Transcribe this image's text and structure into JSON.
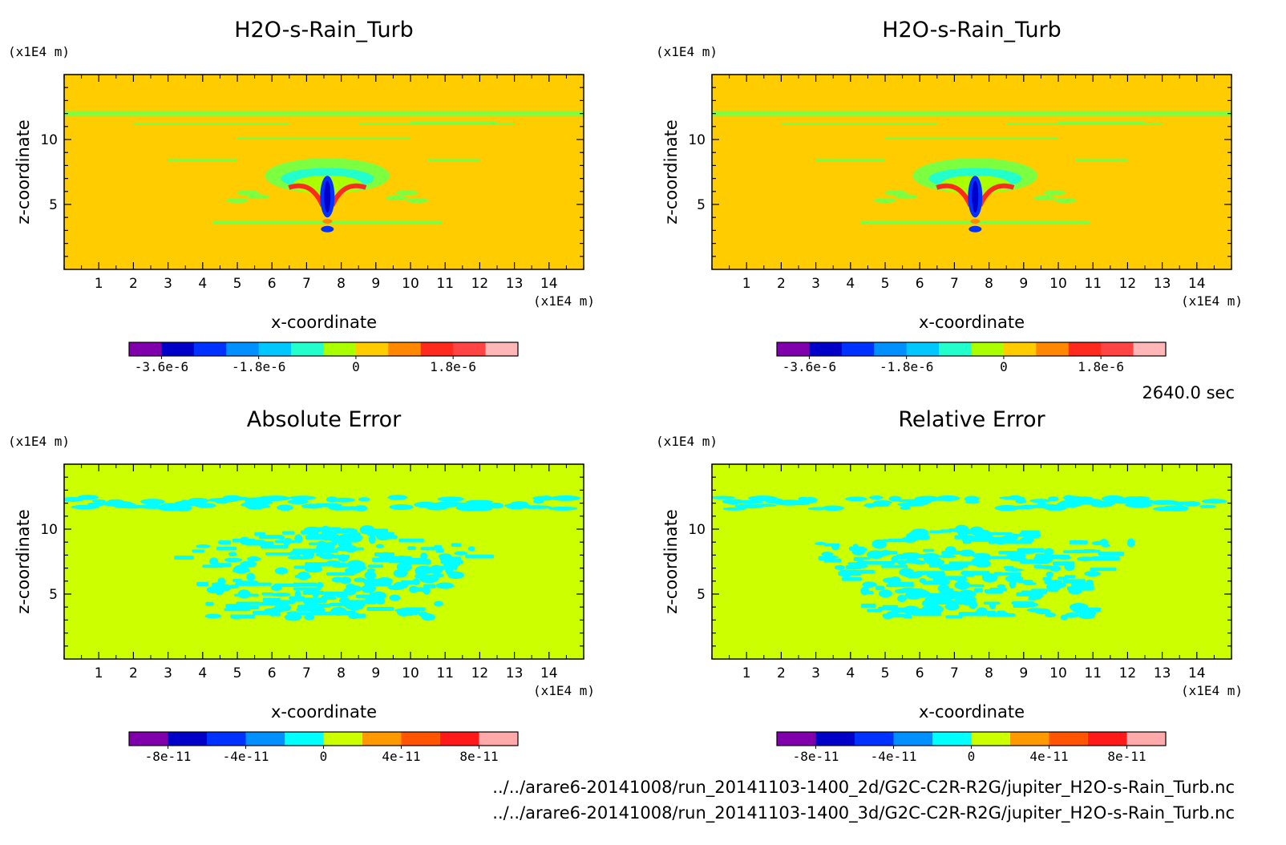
{
  "chart_data": [
    {
      "type": "heatmap",
      "title": "H2O-s-Rain_Turb",
      "xlabel": "x-coordinate",
      "ylabel": "z-coordinate",
      "x_unit": "(x1E4 m)",
      "y_unit": "(x1E4 m)",
      "xlim": [
        0,
        15
      ],
      "ylim": [
        0,
        15
      ],
      "x_ticks": [
        1,
        2,
        3,
        4,
        5,
        6,
        7,
        8,
        9,
        10,
        11,
        12,
        13,
        14
      ],
      "y_ticks": [
        5,
        10
      ],
      "background_color": "#ffcc00",
      "features": {
        "band_z": 12,
        "band_color": "#7cff40",
        "plume_center_x": 7.6,
        "plume_top_z": 8,
        "plume_bottom_z": 3
      },
      "colorbar": {
        "colors": [
          "#7f00aa",
          "#0000c8",
          "#0032ff",
          "#0090ff",
          "#00c8ff",
          "#22ffcc",
          "#aaff00",
          "#ffcc00",
          "#ff8800",
          "#ff2a1e",
          "#ff4444",
          "#ffb6b6"
        ],
        "labels": [
          "-3.6e-6",
          "-1.8e-6",
          "0",
          "1.8e-6"
        ],
        "label_positions": [
          1,
          4,
          7,
          10
        ]
      }
    },
    {
      "type": "heatmap",
      "title": "H2O-s-Rain_Turb",
      "xlabel": "x-coordinate",
      "ylabel": "z-coordinate",
      "x_unit": "(x1E4 m)",
      "y_unit": "(x1E4 m)",
      "xlim": [
        0,
        15
      ],
      "ylim": [
        0,
        15
      ],
      "x_ticks": [
        1,
        2,
        3,
        4,
        5,
        6,
        7,
        8,
        9,
        10,
        11,
        12,
        13,
        14
      ],
      "y_ticks": [
        5,
        10
      ],
      "background_color": "#ffcc00",
      "features": {
        "band_z": 12,
        "band_color": "#7cff40",
        "plume_center_x": 7.6,
        "plume_top_z": 8,
        "plume_bottom_z": 3
      },
      "colorbar": {
        "colors": [
          "#7f00aa",
          "#0000c8",
          "#0032ff",
          "#0090ff",
          "#00c8ff",
          "#22ffcc",
          "#aaff00",
          "#ffcc00",
          "#ff8800",
          "#ff2a1e",
          "#ff4444",
          "#ffb6b6"
        ],
        "labels": [
          "-3.6e-6",
          "-1.8e-6",
          "0",
          "1.8e-6"
        ],
        "label_positions": [
          1,
          4,
          7,
          10
        ]
      }
    },
    {
      "type": "heatmap",
      "title": "Absolute Error",
      "xlabel": "x-coordinate",
      "ylabel": "z-coordinate",
      "x_unit": "(x1E4 m)",
      "y_unit": "(x1E4 m)",
      "xlim": [
        0,
        15
      ],
      "ylim": [
        0,
        15
      ],
      "x_ticks": [
        1,
        2,
        3,
        4,
        5,
        6,
        7,
        8,
        9,
        10,
        11,
        12,
        13,
        14
      ],
      "y_ticks": [
        5,
        10
      ],
      "background_color": "#ccff00",
      "features": {
        "band_z": 12,
        "band_color": "#00ffff",
        "blob_color": "#00ffff"
      },
      "colorbar": {
        "colors": [
          "#7f00aa",
          "#0000c8",
          "#0032ff",
          "#0090ff",
          "#00ffff",
          "#ccff00",
          "#ff9900",
          "#ff5500",
          "#ff1a1a",
          "#ffaaaa"
        ],
        "labels": [
          "-8e-11",
          "-4e-11",
          "0",
          "4e-11",
          "8e-11"
        ],
        "label_positions": [
          1,
          3,
          5,
          7,
          9
        ]
      }
    },
    {
      "type": "heatmap",
      "title": "Relative Error",
      "xlabel": "x-coordinate",
      "ylabel": "z-coordinate",
      "x_unit": "(x1E4 m)",
      "y_unit": "(x1E4 m)",
      "xlim": [
        0,
        15
      ],
      "ylim": [
        0,
        15
      ],
      "x_ticks": [
        1,
        2,
        3,
        4,
        5,
        6,
        7,
        8,
        9,
        10,
        11,
        12,
        13,
        14
      ],
      "y_ticks": [
        5,
        10
      ],
      "background_color": "#ccff00",
      "features": {
        "band_z": 12,
        "band_color": "#00ffff",
        "blob_color": "#00ffff"
      },
      "colorbar": {
        "colors": [
          "#7f00aa",
          "#0000c8",
          "#0032ff",
          "#0090ff",
          "#00ffff",
          "#ccff00",
          "#ff9900",
          "#ff5500",
          "#ff1a1a",
          "#ffaaaa"
        ],
        "labels": [
          "-8e-11",
          "-4e-11",
          "0",
          "4e-11",
          "8e-11"
        ],
        "label_positions": [
          1,
          3,
          5,
          7,
          9
        ]
      }
    }
  ],
  "time_label": "2640.0 sec",
  "file_paths": [
    "../../arare6-20141008/run_20141103-1400_2d/G2C-C2R-R2G/jupiter_H2O-s-Rain_Turb.nc",
    "../../arare6-20141008/run_20141103-1400_3d/G2C-C2R-R2G/jupiter_H2O-s-Rain_Turb.nc"
  ]
}
